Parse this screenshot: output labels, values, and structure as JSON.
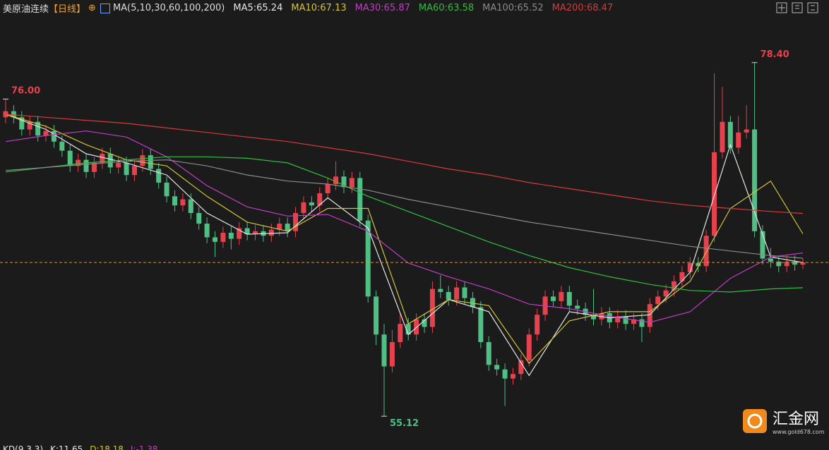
{
  "title": "美原油连续",
  "period": "【日线】",
  "ma_params": "MA(5,10,30,60,100,200)",
  "chart_data": {
    "type": "candlestick",
    "open": [
      74.8,
      75.2,
      74.8,
      74.0,
      74.5,
      73.6,
      73.9,
      73.2,
      72.6,
      71.6,
      72.0,
      71.2,
      71.8,
      72.4,
      71.5,
      71.8,
      71.0,
      71.6,
      72.3,
      71.4,
      70.5,
      69.6,
      69.0,
      69.4,
      68.5,
      67.8,
      66.9,
      66.6,
      67.2,
      66.8,
      67.5,
      67.1,
      67.3,
      67.0,
      67.4,
      67.8,
      67.3,
      68.5,
      69.2,
      69.0,
      69.8,
      70.4,
      70.9,
      70.2,
      70.8,
      68.0,
      63.0,
      60.5,
      58.4,
      60.0,
      61.2,
      60.5,
      61.5,
      61.0,
      63.5,
      63.3,
      62.8,
      63.6,
      62.9,
      62.3,
      60.0,
      58.5,
      58.2,
      57.6,
      57.9,
      58.8,
      60.5,
      61.8,
      63.0,
      62.7,
      63.3,
      62.4,
      62.2,
      61.8,
      61.5,
      61.9,
      61.3,
      61.7,
      61.2,
      61.5,
      61.0,
      62.5,
      63.0,
      63.4,
      64.0,
      64.6,
      65.2,
      65.0,
      67.0,
      72.5,
      74.5,
      72.8,
      73.8,
      74.0,
      67.3,
      65.5,
      65.3,
      65.0,
      65.3,
      65.1
    ],
    "high": [
      76.0,
      75.6,
      75.2,
      74.9,
      74.9,
      74.3,
      74.3,
      73.6,
      73.0,
      72.4,
      72.4,
      72.2,
      72.8,
      72.8,
      72.2,
      72.2,
      72.0,
      72.7,
      72.7,
      71.8,
      70.9,
      70.0,
      69.8,
      69.8,
      68.9,
      68.2,
      67.3,
      67.6,
      67.6,
      67.9,
      67.9,
      67.7,
      67.7,
      67.8,
      68.2,
      68.2,
      68.9,
      69.6,
      69.6,
      70.2,
      70.8,
      71.9,
      71.3,
      71.2,
      71.2,
      68.4,
      63.4,
      61.2,
      60.8,
      61.9,
      61.6,
      61.9,
      61.9,
      64.0,
      64.4,
      63.7,
      64.0,
      64.0,
      63.3,
      62.7,
      60.4,
      58.9,
      58.6,
      58.3,
      59.2,
      60.9,
      62.2,
      63.4,
      63.4,
      63.7,
      63.7,
      62.8,
      62.6,
      63.5,
      62.3,
      62.3,
      62.1,
      62.1,
      61.9,
      61.9,
      62.9,
      63.4,
      63.8,
      64.4,
      65.0,
      65.6,
      65.6,
      67.4,
      77.7,
      76.8,
      74.9,
      74.9,
      75.6,
      78.4,
      67.7,
      66.2,
      65.7,
      65.7,
      65.7,
      65.5
    ],
    "low": [
      74.4,
      74.4,
      73.6,
      73.6,
      73.2,
      73.2,
      72.8,
      72.2,
      71.2,
      71.2,
      70.8,
      70.8,
      71.4,
      71.1,
      71.1,
      70.6,
      70.6,
      71.2,
      71.0,
      70.1,
      69.2,
      68.6,
      68.6,
      68.1,
      67.4,
      66.5,
      65.6,
      66.2,
      66.1,
      66.4,
      66.7,
      66.7,
      66.6,
      66.6,
      67.0,
      66.9,
      66.9,
      68.1,
      68.6,
      68.6,
      69.4,
      70.0,
      69.8,
      69.8,
      67.6,
      62.6,
      59.8,
      55.12,
      58.0,
      59.6,
      60.1,
      60.1,
      60.6,
      60.6,
      62.9,
      62.4,
      62.4,
      62.5,
      61.9,
      59.6,
      58.1,
      57.8,
      55.8,
      57.2,
      57.5,
      58.4,
      60.1,
      61.4,
      62.3,
      62.3,
      62.0,
      61.8,
      61.4,
      61.1,
      61.1,
      60.9,
      60.9,
      60.8,
      60.8,
      60.0,
      60.6,
      62.1,
      62.6,
      63.0,
      63.6,
      64.2,
      64.6,
      64.6,
      66.6,
      72.1,
      72.4,
      72.4,
      73.4,
      66.9,
      65.1,
      64.9,
      64.6,
      64.6,
      64.7,
      64.8
    ],
    "close": [
      75.2,
      74.8,
      74.0,
      74.5,
      73.6,
      73.9,
      73.2,
      72.6,
      71.6,
      72.0,
      71.2,
      71.8,
      72.4,
      71.5,
      71.8,
      71.0,
      71.6,
      72.3,
      71.4,
      70.5,
      69.6,
      69.0,
      69.4,
      68.5,
      67.8,
      66.9,
      66.6,
      67.2,
      66.8,
      67.5,
      67.1,
      67.3,
      67.0,
      67.4,
      67.8,
      67.3,
      68.5,
      69.2,
      69.0,
      69.8,
      70.4,
      70.9,
      70.2,
      70.8,
      68.0,
      63.0,
      60.5,
      58.4,
      60.0,
      61.2,
      60.5,
      61.5,
      61.0,
      63.5,
      63.3,
      62.8,
      63.6,
      62.9,
      62.3,
      60.0,
      58.5,
      58.2,
      57.6,
      57.9,
      58.8,
      60.5,
      61.8,
      63.0,
      62.7,
      63.3,
      62.4,
      62.2,
      61.8,
      61.5,
      61.9,
      61.3,
      61.7,
      61.2,
      61.5,
      61.0,
      62.5,
      63.0,
      63.4,
      64.0,
      64.6,
      65.2,
      65.0,
      67.0,
      72.5,
      74.5,
      72.8,
      73.8,
      74.0,
      67.3,
      65.5,
      65.3,
      65.0,
      65.3,
      65.1,
      65.24
    ],
    "up_color": "#e8414e",
    "down_color": "#4fbf84",
    "ylim": [
      53.5,
      81.5
    ],
    "ma_x": [
      0,
      5,
      10,
      15,
      20,
      25,
      30,
      35,
      40,
      45,
      50,
      55,
      60,
      65,
      70,
      75,
      80,
      85,
      90,
      95,
      99
    ],
    "series": [
      {
        "name": "MA5",
        "label": "MA5:65.24",
        "color": "#e6e6e6",
        "values": [
          75.0,
          74.0,
          72.4,
          71.8,
          71.0,
          68.5,
          67.1,
          67.2,
          69.5,
          67.5,
          60.5,
          62.8,
          62.0,
          57.8,
          62.0,
          61.6,
          61.8,
          64.6,
          73.0,
          65.6,
          65.24
        ]
      },
      {
        "name": "MA10",
        "label": "MA10:67.13",
        "color": "#d4c430",
        "values": [
          75.0,
          74.2,
          73.0,
          72.0,
          71.6,
          69.6,
          67.9,
          67.3,
          68.8,
          68.8,
          61.2,
          62.8,
          62.4,
          58.6,
          61.4,
          62.0,
          62.0,
          64.0,
          68.8,
          70.6,
          67.13
        ]
      },
      {
        "name": "MA30",
        "label": "MA30:65.87",
        "color": "#c23cc8",
        "values": [
          73.2,
          73.6,
          73.9,
          73.5,
          72.2,
          70.3,
          68.9,
          68.3,
          68.4,
          67.3,
          65.2,
          64.3,
          63.5,
          62.5,
          62.2,
          61.7,
          61.3,
          62.0,
          64.2,
          65.6,
          65.87
        ]
      },
      {
        "name": "MA60",
        "label": "MA60:63.58",
        "color": "#2fbf3f",
        "values": [
          71.2,
          71.5,
          71.8,
          72.0,
          72.2,
          72.2,
          72.1,
          71.8,
          70.8,
          69.6,
          68.6,
          67.6,
          66.6,
          65.7,
          64.9,
          64.3,
          63.8,
          63.4,
          63.3,
          63.5,
          63.58
        ]
      },
      {
        "name": "MA100",
        "label": "MA100:65.52",
        "color": "#8a8a8a",
        "values": [
          71.3,
          71.5,
          71.7,
          71.9,
          72.0,
          71.6,
          71.0,
          70.6,
          70.4,
          70.0,
          69.4,
          68.9,
          68.4,
          67.9,
          67.5,
          67.1,
          66.7,
          66.3,
          66.0,
          65.7,
          65.52
        ]
      },
      {
        "name": "MA200",
        "label": "MA200:68.47",
        "color": "#d63a3a",
        "values": [
          75.0,
          74.8,
          74.6,
          74.4,
          74.1,
          73.8,
          73.5,
          73.2,
          72.8,
          72.4,
          71.9,
          71.4,
          71.0,
          70.5,
          70.1,
          69.7,
          69.3,
          69.0,
          68.8,
          68.6,
          68.47
        ]
      }
    ],
    "annotations": [
      {
        "text": "76.00",
        "index": 0,
        "color": "#e8414e"
      },
      {
        "text": "78.40",
        "index": 93,
        "color": "#e8414e"
      },
      {
        "text": "55.12",
        "index": 47,
        "color": "#4fbf84"
      }
    ],
    "last_price_color": "#e0922a"
  },
  "indicator": {
    "labels": [
      {
        "text": "KD(9,3,3)",
        "color": "#e6e6e6"
      },
      {
        "text": "K:11.65",
        "color": "#e6e6e6"
      },
      {
        "text": "D:18.18",
        "color": "#d4c430"
      },
      {
        "text": "J:-1.38",
        "color": "#c23cc8"
      }
    ]
  },
  "watermark": {
    "name": "汇金网",
    "url": "www.gold678.com"
  }
}
